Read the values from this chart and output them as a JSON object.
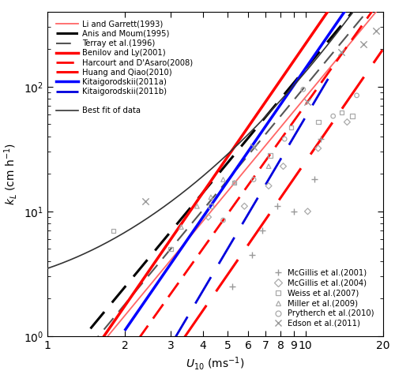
{
  "xlim": [
    1,
    20
  ],
  "ylim": [
    1,
    400
  ],
  "xlabel": "$U_{10}$ (ms$^{-1}$)",
  "ylabel": "$k_L$ (cm h$^{-1}$)",
  "curves": {
    "LiGarrett": {
      "a": 0.26,
      "b": 2.5,
      "color": "#ff6666",
      "lw": 1.3,
      "ls": "solid",
      "dashes": null,
      "xmin": 1.0,
      "xmax": 20
    },
    "AnisMoum": {
      "a": 0.44,
      "b": 2.5,
      "color": "#000000",
      "lw": 2.2,
      "ls": "dashed",
      "dashes": [
        9,
        5
      ],
      "xmin": 1.0,
      "xmax": 20
    },
    "Terray": {
      "a": 0.32,
      "b": 2.5,
      "color": "#555555",
      "lw": 1.5,
      "ls": "dashed",
      "dashes": [
        9,
        5
      ],
      "xmin": 1.0,
      "xmax": 20
    },
    "Benilov": {
      "a": 0.22,
      "b": 3.0,
      "color": "#ff0000",
      "lw": 2.5,
      "ls": "solid",
      "dashes": null,
      "xmin": 1.0,
      "xmax": 20
    },
    "Harcourt": {
      "a": 0.09,
      "b": 2.9,
      "color": "#ff0000",
      "lw": 2.0,
      "ls": "dashed",
      "dashes": [
        8,
        4
      ],
      "xmin": 1.0,
      "xmax": 20
    },
    "HuangQiao": {
      "a": 0.025,
      "b": 3.0,
      "color": "#ff0000",
      "lw": 2.2,
      "ls": "dashed",
      "dashes": [
        16,
        7
      ],
      "xmin": 1.5,
      "xmax": 20
    },
    "Kita2011a": {
      "a": 0.14,
      "b": 3.0,
      "color": "#0000ff",
      "lw": 2.5,
      "ls": "solid",
      "dashes": null,
      "xmin": 2.0,
      "xmax": 20
    },
    "Kita2011b": {
      "a": 0.018,
      "b": 3.5,
      "color": "#0000dd",
      "lw": 2.0,
      "ls": "dashed",
      "dashes": [
        14,
        7
      ],
      "xmin": 2.0,
      "xmax": 13
    }
  },
  "bestfit": {
    "lnA": 1.25,
    "lnB": 0.7,
    "lnC": 0.38,
    "color": "#333333",
    "lw": 1.2
  },
  "scatter": {
    "McGillis2001": {
      "x": [
        5.2,
        6.2,
        6.8,
        7.8,
        9.0,
        10.8,
        11.5
      ],
      "y": [
        2.5,
        4.5,
        7.0,
        11.0,
        10.0,
        18.0,
        38.0
      ],
      "marker": "+",
      "color": "#999999",
      "ms": 6
    },
    "McGillis2004": {
      "x": [
        4.2,
        5.8,
        7.2,
        8.2,
        10.2,
        11.2,
        14.5
      ],
      "y": [
        9.0,
        11.0,
        16.0,
        23.0,
        10.0,
        32.0,
        52.0
      ],
      "marker": "D",
      "color": "#aaaaaa",
      "ms": 4
    },
    "Weiss2007": {
      "x": [
        1.8,
        3.0,
        4.3,
        5.3,
        7.3,
        8.8,
        11.2,
        13.8,
        15.2
      ],
      "y": [
        7.0,
        5.0,
        11.0,
        17.0,
        28.0,
        47.0,
        52.0,
        62.0,
        58.0
      ],
      "marker": "s",
      "color": "#aaaaaa",
      "ms": 4
    },
    "Miller2009": {
      "x": [
        3.3,
        3.8,
        4.3,
        4.8,
        5.3,
        7.2
      ],
      "y": [
        7.5,
        11.0,
        13.0,
        18.0,
        17.0,
        23.0
      ],
      "marker": "^",
      "color": "#aaaaaa",
      "ms": 4
    },
    "Prytherch2010": {
      "x": [
        4.8,
        6.3,
        8.3,
        9.8,
        12.8,
        15.8
      ],
      "y": [
        8.5,
        18.0,
        38.0,
        95.0,
        58.0,
        85.0
      ],
      "marker": "o",
      "color": "#aaaaaa",
      "ms": 4
    },
    "Edson2011": {
      "x": [
        2.4,
        6.3,
        10.2,
        13.8,
        16.8,
        18.8
      ],
      "y": [
        12.0,
        33.0,
        75.0,
        190.0,
        220.0,
        280.0
      ],
      "marker": "x",
      "color": "#999999",
      "ms": 6
    }
  },
  "legend_top": [
    {
      "label": "Li and Garrett(1993)",
      "color": "#ff6666",
      "lw": 1.3,
      "dashes": null
    },
    {
      "label": "Anis and Moum(1995)",
      "color": "#000000",
      "lw": 2.2,
      "dashes": [
        9,
        5
      ]
    },
    {
      "label": "Terray et al.(1996)",
      "color": "#555555",
      "lw": 1.5,
      "dashes": [
        9,
        5
      ]
    },
    {
      "label": "Benilov and Ly(2001)",
      "color": "#ff0000",
      "lw": 2.5,
      "dashes": null
    },
    {
      "label": "Harcourt and D'Asaro(2008)",
      "color": "#ff0000",
      "lw": 2.0,
      "dashes": [
        8,
        4
      ]
    },
    {
      "label": "Huang and Qiao(2010)",
      "color": "#ff0000",
      "lw": 2.2,
      "dashes": [
        16,
        7
      ]
    },
    {
      "label": "Kitaigorodskii(2011a)",
      "color": "#0000ff",
      "lw": 2.5,
      "dashes": null
    },
    {
      "label": "Kitaigorodskii(2011b)",
      "color": "#0000dd",
      "lw": 2.0,
      "dashes": [
        14,
        7
      ]
    },
    {
      "label": "",
      "color": "white",
      "lw": 0,
      "dashes": null
    },
    {
      "label": "Best fit of data",
      "color": "#333333",
      "lw": 1.2,
      "dashes": null
    }
  ],
  "legend_scatter": [
    {
      "label": "McGillis et al.(2001)",
      "marker": "+",
      "color": "#999999"
    },
    {
      "label": "McGillis et al.(2004)",
      "marker": "D",
      "color": "#aaaaaa"
    },
    {
      "label": "Weiss et al.(2007)",
      "marker": "s",
      "color": "#aaaaaa"
    },
    {
      "label": "Miller et al.(2009)",
      "marker": "^",
      "color": "#aaaaaa"
    },
    {
      "label": "Prytherch et al.(2010)",
      "marker": "o",
      "color": "#aaaaaa"
    },
    {
      "label": "Edson et al.(2011)",
      "marker": "x",
      "color": "#999999"
    }
  ]
}
